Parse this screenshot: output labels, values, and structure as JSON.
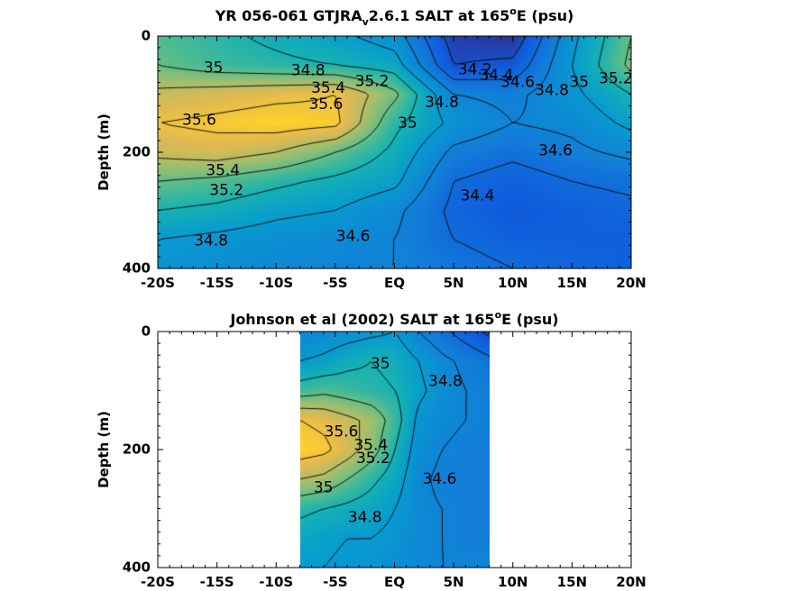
{
  "chart_data": [
    {
      "type": "heatmap",
      "subtype": "filled-contour",
      "title_parts": [
        "YR 056-061 GTJRA",
        "v",
        "2.6.1 SALT at 165",
        "o",
        "E (psu)"
      ],
      "xlabel": "",
      "ylabel": "Depth (m)",
      "xlim": [
        -20,
        20
      ],
      "ylim": [
        0,
        400
      ],
      "y_reversed": true,
      "x_ticks": [
        -20,
        -15,
        -10,
        -5,
        0,
        5,
        10,
        15,
        20
      ],
      "x_tick_labels": [
        "-20S",
        "-15S",
        "-10S",
        "-5S",
        "EQ",
        "5N",
        "10N",
        "15N",
        "20N"
      ],
      "y_ticks": [
        0,
        200,
        400
      ],
      "y_tick_labels": [
        "0",
        "200",
        "400"
      ],
      "data_extent_x": [
        -20,
        20
      ],
      "colormap": "parula",
      "color_range": [
        34.0,
        35.8
      ],
      "x": [
        -20,
        -15,
        -10,
        -5,
        0,
        5,
        10,
        15,
        20
      ],
      "depth": [
        0,
        50,
        100,
        150,
        200,
        250,
        300,
        350,
        400
      ],
      "z": [
        [
          35.15,
          35.05,
          34.95,
          34.85,
          34.7,
          34.1,
          34.05,
          34.75,
          35.2
        ],
        [
          35.2,
          35.1,
          35.05,
          35.0,
          34.9,
          34.2,
          34.25,
          34.8,
          35.25
        ],
        [
          35.45,
          35.5,
          35.55,
          35.6,
          35.25,
          34.6,
          34.55,
          34.75,
          35.0
        ],
        [
          35.6,
          35.65,
          35.7,
          35.65,
          35.05,
          34.75,
          34.6,
          34.65,
          34.85
        ],
        [
          35.45,
          35.5,
          35.4,
          35.2,
          34.95,
          34.55,
          34.45,
          34.55,
          34.65
        ],
        [
          35.2,
          35.15,
          35.05,
          34.95,
          34.85,
          34.4,
          34.3,
          34.4,
          34.45
        ],
        [
          35.0,
          34.95,
          34.85,
          34.8,
          34.65,
          34.35,
          34.25,
          34.3,
          34.35
        ],
        [
          34.8,
          34.75,
          34.7,
          34.65,
          34.6,
          34.4,
          34.3,
          34.3,
          34.3
        ],
        [
          34.75,
          34.7,
          34.65,
          34.6,
          34.6,
          34.5,
          34.4,
          34.35,
          34.3
        ]
      ],
      "contour_labels": [
        {
          "text": "35",
          "x": -15.3,
          "depth": 55
        },
        {
          "text": "34.8",
          "x": -7.3,
          "depth": 60
        },
        {
          "text": "35.4",
          "x": -5.6,
          "depth": 90
        },
        {
          "text": "35.2",
          "x": -1.9,
          "depth": 78
        },
        {
          "text": "35.6",
          "x": -5.8,
          "depth": 118
        },
        {
          "text": "35.6",
          "x": -16.5,
          "depth": 145
        },
        {
          "text": "35",
          "x": 1.1,
          "depth": 150
        },
        {
          "text": "34.8",
          "x": 4.0,
          "depth": 115
        },
        {
          "text": "34.2",
          "x": 6.8,
          "depth": 58
        },
        {
          "text": "34.4",
          "x": 8.6,
          "depth": 68
        },
        {
          "text": "34.6",
          "x": 10.4,
          "depth": 80
        },
        {
          "text": "34.8",
          "x": 13.3,
          "depth": 94
        },
        {
          "text": "35",
          "x": 15.6,
          "depth": 80
        },
        {
          "text": "35.2",
          "x": 18.7,
          "depth": 74
        },
        {
          "text": "34.6",
          "x": 13.6,
          "depth": 198
        },
        {
          "text": "34.4",
          "x": 7.0,
          "depth": 275
        },
        {
          "text": "35.4",
          "x": -14.5,
          "depth": 232
        },
        {
          "text": "35.2",
          "x": -14.2,
          "depth": 266
        },
        {
          "text": "34.8",
          "x": -15.5,
          "depth": 353
        },
        {
          "text": "34.6",
          "x": -3.5,
          "depth": 345
        }
      ]
    },
    {
      "type": "heatmap",
      "subtype": "filled-contour",
      "title_parts": [
        "Johnson et al (2002) SALT at 165",
        "o",
        "E (psu)"
      ],
      "xlabel": "",
      "ylabel": "Depth (m)",
      "xlim": [
        -20,
        20
      ],
      "ylim": [
        0,
        400
      ],
      "y_reversed": true,
      "x_ticks": [
        -20,
        -15,
        -10,
        -5,
        0,
        5,
        10,
        15,
        20
      ],
      "x_tick_labels": [
        "-20S",
        "-15S",
        "-10S",
        "-5S",
        "EQ",
        "5N",
        "10N",
        "15N",
        "20N"
      ],
      "y_ticks": [
        0,
        200,
        400
      ],
      "y_tick_labels": [
        "0",
        "200",
        "400"
      ],
      "data_extent_x": [
        -8,
        8
      ],
      "colormap": "parula",
      "color_range": [
        34.0,
        35.8
      ],
      "x": [
        -8,
        -6,
        -4,
        -2,
        0,
        2,
        4,
        6,
        8
      ],
      "depth": [
        0,
        50,
        100,
        150,
        200,
        250,
        300,
        350,
        400
      ],
      "z": [
        [
          34.6,
          34.65,
          34.7,
          34.75,
          34.8,
          34.6,
          34.45,
          34.3,
          34.15
        ],
        [
          34.8,
          34.85,
          34.95,
          35.0,
          34.95,
          34.8,
          34.65,
          34.55,
          34.45
        ],
        [
          35.1,
          35.15,
          35.1,
          35.05,
          35.0,
          34.85,
          34.7,
          34.6,
          34.55
        ],
        [
          35.6,
          35.55,
          35.45,
          35.35,
          35.1,
          34.75,
          34.65,
          34.6,
          34.55
        ],
        [
          35.7,
          35.65,
          35.5,
          35.3,
          35.0,
          34.7,
          34.6,
          34.55,
          34.55
        ],
        [
          35.4,
          35.35,
          35.2,
          35.05,
          34.9,
          34.65,
          34.55,
          34.55,
          34.55
        ],
        [
          35.05,
          35.0,
          34.95,
          34.9,
          34.8,
          34.65,
          34.6,
          34.55,
          34.55
        ],
        [
          34.9,
          34.85,
          34.8,
          34.8,
          34.75,
          34.65,
          34.6,
          34.55,
          34.55
        ],
        [
          34.8,
          34.8,
          34.75,
          34.75,
          34.7,
          34.65,
          34.6,
          34.6,
          34.6
        ]
      ],
      "contour_labels": [
        {
          "text": "35",
          "x": -1.2,
          "depth": 55
        },
        {
          "text": "34.8",
          "x": 4.3,
          "depth": 85
        },
        {
          "text": "35.6",
          "x": -4.5,
          "depth": 170
        },
        {
          "text": "35.4",
          "x": -2.0,
          "depth": 193
        },
        {
          "text": "35.2",
          "x": -1.8,
          "depth": 215
        },
        {
          "text": "35",
          "x": -6.0,
          "depth": 265
        },
        {
          "text": "34.6",
          "x": 3.8,
          "depth": 250
        },
        {
          "text": "34.8",
          "x": -2.5,
          "depth": 315
        }
      ]
    }
  ]
}
